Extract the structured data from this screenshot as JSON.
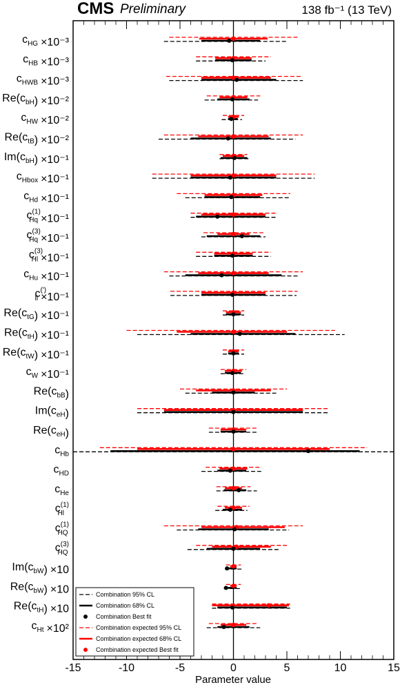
{
  "header": {
    "experiment": "CMS",
    "status": "Preliminary",
    "luminosity": "138 fb⁻¹ (13 TeV)"
  },
  "chart_data": {
    "type": "forest",
    "xlabel": "Parameter value",
    "xlim": [
      -15,
      15
    ],
    "xticks": [
      -15,
      -10,
      -5,
      0,
      5,
      10,
      15
    ],
    "parameters": [
      {
        "base": "c",
        "sub": "HG",
        "sup": "",
        "wrap": false,
        "scale": "×10⁻³",
        "obs68": [
          -3.0,
          2.5
        ],
        "obs95": [
          -6.5,
          5.0
        ],
        "obs_best": -0.4,
        "exp68": [
          -3.2,
          3.2
        ],
        "exp95": [
          -6.0,
          6.0
        ],
        "exp_best": 0.0
      },
      {
        "base": "c",
        "sub": "HB",
        "sup": "",
        "wrap": false,
        "scale": "×10⁻³",
        "obs68": [
          -1.7,
          1.7
        ],
        "obs95": [
          -3.5,
          3.0
        ],
        "obs_best": -0.1,
        "exp68": [
          -1.7,
          1.7
        ],
        "exp95": [
          -3.5,
          3.5
        ],
        "exp_best": 0.0
      },
      {
        "base": "c",
        "sub": "HWB",
        "sup": "",
        "wrap": false,
        "scale": "×10⁻³",
        "obs68": [
          -3.0,
          4.0
        ],
        "obs95": [
          -6.0,
          6.5
        ],
        "obs_best": 0.3,
        "exp68": [
          -3.0,
          3.5
        ],
        "exp95": [
          -6.3,
          6.3
        ],
        "exp_best": 0.0
      },
      {
        "base": "c",
        "sub": "bH",
        "sup": "",
        "wrap": true,
        "prefix": "Re",
        "scale": "×10⁻²",
        "obs68": [
          -1.5,
          1.5
        ],
        "obs95": [
          -2.7,
          2.3
        ],
        "obs_best": -0.1,
        "exp68": [
          -1.3,
          1.3
        ],
        "exp95": [
          -2.5,
          2.5
        ],
        "exp_best": 0.0
      },
      {
        "base": "c",
        "sub": "HW",
        "sup": "",
        "wrap": false,
        "scale": "×10⁻²",
        "obs68": [
          -0.5,
          0.4
        ],
        "obs95": [
          -1.1,
          0.8
        ],
        "obs_best": -0.2,
        "exp68": [
          -0.5,
          0.5
        ],
        "exp95": [
          -1.0,
          1.0
        ],
        "exp_best": 0.0
      },
      {
        "base": "c",
        "sub": "tB",
        "sup": "",
        "wrap": true,
        "prefix": "Re",
        "scale": "×10⁻²",
        "obs68": [
          -4.0,
          3.5
        ],
        "obs95": [
          -7.0,
          5.8
        ],
        "obs_best": -0.5,
        "exp68": [
          -3.3,
          3.3
        ],
        "exp95": [
          -6.5,
          6.5
        ],
        "exp_best": 0.0
      },
      {
        "base": "c",
        "sub": "bH",
        "sup": "",
        "wrap": true,
        "prefix": "Im",
        "scale": "×10⁻¹",
        "obs68": [
          -1.2,
          1.3
        ],
        "obs95": [
          -1.3,
          1.4
        ],
        "obs_best": 0.1,
        "exp68": [
          -1.0,
          1.0
        ],
        "exp95": [
          -1.3,
          1.3
        ],
        "exp_best": 0.0
      },
      {
        "base": "c",
        "sub": "Hbox",
        "sup": "",
        "wrap": false,
        "scale": "×10⁻¹",
        "obs68": [
          -4.0,
          4.0
        ],
        "obs95": [
          -7.6,
          7.6
        ],
        "obs_best": -0.3,
        "exp68": [
          -4.0,
          4.0
        ],
        "exp95": [
          -7.6,
          7.6
        ],
        "exp_best": 0.0
      },
      {
        "base": "c",
        "sub": "Hd",
        "sup": "",
        "wrap": false,
        "scale": "×10⁻¹",
        "obs68": [
          -2.7,
          2.5
        ],
        "obs95": [
          -4.5,
          5.2
        ],
        "obs_best": -0.2,
        "exp68": [
          -2.7,
          2.7
        ],
        "exp95": [
          -5.3,
          5.3
        ],
        "exp_best": 0.0
      },
      {
        "base": "c",
        "sub": "Hq",
        "sup": "(1)",
        "wrap": false,
        "scale": "×10⁻¹",
        "obs68": [
          -3.5,
          3.0
        ],
        "obs95": [
          -4.0,
          4.0
        ],
        "obs_best": -1.5,
        "exp68": [
          -3.0,
          3.0
        ],
        "exp95": [
          -4.0,
          4.0
        ],
        "exp_best": 0.0
      },
      {
        "base": "c",
        "sub": "Hq",
        "sup": "(3)",
        "wrap": false,
        "scale": "×10⁻¹",
        "obs68": [
          -2.5,
          2.5
        ],
        "obs95": [
          -3.0,
          3.0
        ],
        "obs_best": 0.8,
        "exp68": [
          -1.5,
          1.5
        ],
        "exp95": [
          -2.8,
          2.8
        ],
        "exp_best": 0.0
      },
      {
        "base": "c",
        "sub": "Hl",
        "sup": "(3)",
        "wrap": false,
        "scale": "×10⁻¹",
        "obs68": [
          -1.8,
          1.8
        ],
        "obs95": [
          -3.5,
          3.5
        ],
        "obs_best": -0.1,
        "exp68": [
          -1.8,
          1.8
        ],
        "exp95": [
          -3.5,
          3.5
        ],
        "exp_best": 0.0
      },
      {
        "base": "c",
        "sub": "Hu",
        "sup": "",
        "wrap": false,
        "scale": "×10⁻¹",
        "obs68": [
          -4.5,
          4.5
        ],
        "obs95": [
          -6.0,
          6.0
        ],
        "obs_best": -1.1,
        "exp68": [
          -3.3,
          3.3
        ],
        "exp95": [
          -6.5,
          6.5
        ],
        "exp_best": 0.0
      },
      {
        "base": "c",
        "sub": "ll",
        "sup": "(')",
        "wrap": false,
        "scale": "×10⁻¹",
        "obs68": [
          -3.0,
          3.0
        ],
        "obs95": [
          -5.9,
          5.9
        ],
        "obs_best": -0.1,
        "exp68": [
          -3.0,
          3.0
        ],
        "exp95": [
          -5.9,
          6.0
        ],
        "exp_best": 0.0
      },
      {
        "base": "c",
        "sub": "tG",
        "sup": "",
        "wrap": true,
        "prefix": "Re",
        "scale": "×10⁻¹",
        "obs68": [
          -0.7,
          0.7
        ],
        "obs95": [
          -1.0,
          1.0
        ],
        "obs_best": 0.0,
        "exp68": [
          -0.7,
          0.7
        ],
        "exp95": [
          -1.0,
          1.0
        ],
        "exp_best": 0.0
      },
      {
        "base": "c",
        "sub": "tH",
        "sup": "",
        "wrap": true,
        "prefix": "Re",
        "scale": "×10⁻¹",
        "obs68": [
          -4.0,
          5.8
        ],
        "obs95": [
          -9.0,
          10.4
        ],
        "obs_best": 0.6,
        "exp68": [
          -5.3,
          5.0
        ],
        "exp95": [
          -10.0,
          9.5
        ],
        "exp_best": 0.0
      },
      {
        "base": "c",
        "sub": "tW",
        "sup": "",
        "wrap": true,
        "prefix": "Re",
        "scale": "×10⁻¹",
        "obs68": [
          -0.5,
          0.5
        ],
        "obs95": [
          -1.0,
          1.0
        ],
        "obs_best": 0.0,
        "exp68": [
          -0.5,
          0.5
        ],
        "exp95": [
          -1.0,
          1.0
        ],
        "exp_best": 0.0
      },
      {
        "base": "c",
        "sub": "W",
        "sup": "",
        "wrap": false,
        "scale": "×10⁻¹",
        "obs68": [
          -0.8,
          0.7
        ],
        "obs95": [
          -1.2,
          1.0
        ],
        "obs_best": -0.1,
        "exp68": [
          -0.8,
          0.8
        ],
        "exp95": [
          -1.2,
          1.2
        ],
        "exp_best": 0.0
      },
      {
        "base": "c",
        "sub": "bB",
        "sup": "",
        "wrap": true,
        "prefix": "Re",
        "scale": "",
        "obs68": [
          -2.0,
          2.0
        ],
        "obs95": [
          -4.5,
          4.0
        ],
        "obs_best": 0.0,
        "exp68": [
          -3.5,
          3.5
        ],
        "exp95": [
          -5.0,
          5.0
        ],
        "exp_best": 0.0
      },
      {
        "base": "c",
        "sub": "eH",
        "sup": "",
        "wrap": true,
        "prefix": "Im",
        "scale": "",
        "obs68": [
          -6.5,
          6.5
        ],
        "obs95": [
          -9.0,
          9.0
        ],
        "obs_best": 0.0,
        "exp68": [
          -6.5,
          6.5
        ],
        "exp95": [
          -9.0,
          9.0
        ],
        "exp_best": 0.0
      },
      {
        "base": "c",
        "sub": "eH",
        "sup": "",
        "wrap": true,
        "prefix": "Re",
        "scale": "",
        "obs68": [
          -1.2,
          1.2
        ],
        "obs95": [
          -2.3,
          2.3
        ],
        "obs_best": 0.0,
        "exp68": [
          -1.2,
          1.2
        ],
        "exp95": [
          -2.3,
          2.3
        ],
        "exp_best": 0.0
      },
      {
        "base": "c",
        "sub": "Hb",
        "sup": "",
        "wrap": false,
        "scale": "",
        "obs68": [
          -11.5,
          11.8
        ],
        "obs95": [
          -15.0,
          15.0
        ],
        "obs_best": 7.0,
        "exp68": [
          -9.0,
          9.0
        ],
        "exp95": [
          -12.5,
          12.5
        ],
        "exp_best": 0.0
      },
      {
        "base": "c",
        "sub": "HD",
        "sup": "",
        "wrap": false,
        "scale": "",
        "obs68": [
          -1.5,
          1.2
        ],
        "obs95": [
          -3.0,
          2.6
        ],
        "obs_best": -0.3,
        "exp68": [
          -1.3,
          1.3
        ],
        "exp95": [
          -2.6,
          2.6
        ],
        "exp_best": 0.0
      },
      {
        "base": "c",
        "sub": "He",
        "sup": "",
        "wrap": false,
        "scale": "",
        "obs68": [
          -0.9,
          1.2
        ],
        "obs95": [
          -1.6,
          2.2
        ],
        "obs_best": 0.5,
        "exp68": [
          -0.8,
          0.8
        ],
        "exp95": [
          -1.6,
          1.6
        ],
        "exp_best": 0.0
      },
      {
        "base": "c",
        "sub": "Hl",
        "sup": "(1)",
        "wrap": false,
        "scale": "",
        "obs68": [
          -1.0,
          0.8
        ],
        "obs95": [
          -1.7,
          1.3
        ],
        "obs_best": -0.3,
        "exp68": [
          -0.8,
          0.8
        ],
        "exp95": [
          -1.5,
          1.5
        ],
        "exp_best": 0.0
      },
      {
        "base": "c",
        "sub": "HQ",
        "sup": "(1)",
        "wrap": false,
        "scale": "",
        "obs68": [
          -3.3,
          3.3
        ],
        "obs95": [
          -5.3,
          5.2
        ],
        "obs_best": 0.1,
        "exp68": [
          -3.0,
          4.8
        ],
        "exp95": [
          -6.5,
          6.5
        ],
        "exp_best": 0.3
      },
      {
        "base": "c",
        "sub": "HQ",
        "sup": "(3)",
        "wrap": false,
        "scale": "",
        "obs68": [
          -2.5,
          2.5
        ],
        "obs95": [
          -4.3,
          4.3
        ],
        "obs_best": 0.0,
        "exp68": [
          -2.0,
          3.5
        ],
        "exp95": [
          -3.5,
          5.0
        ],
        "exp_best": 0.3
      },
      {
        "base": "c",
        "sub": "bW",
        "sup": "",
        "wrap": true,
        "prefix": "Im",
        "scale": "×10",
        "obs68": [
          -0.5,
          0.3
        ],
        "obs95": [
          -0.8,
          0.8
        ],
        "obs_best": -0.6,
        "exp68": [
          -0.3,
          0.3
        ],
        "exp95": [
          -0.7,
          0.7
        ],
        "exp_best": 0.0
      },
      {
        "base": "c",
        "sub": "bW",
        "sup": "",
        "wrap": true,
        "prefix": "Re",
        "scale": "×10",
        "obs68": [
          -0.7,
          0.3
        ],
        "obs95": [
          -0.9,
          0.6
        ],
        "obs_best": -0.7,
        "exp68": [
          -0.3,
          0.3
        ],
        "exp95": [
          -0.7,
          0.7
        ],
        "exp_best": 0.0
      },
      {
        "base": "c",
        "sub": "tH",
        "sup": "",
        "wrap": true,
        "prefix": "Re",
        "scale": "×10",
        "obs68": [
          -1.5,
          5.0
        ],
        "obs95": [
          -2.0,
          5.3
        ],
        "obs_best": -0.1,
        "exp68": [
          -2.0,
          5.2
        ],
        "exp95": [
          -2.0,
          5.3
        ],
        "exp_best": 3.3
      },
      {
        "base": "c",
        "sub": "Ht",
        "sup": "",
        "wrap": false,
        "scale": "×10²",
        "obs68": [
          -1.5,
          1.5
        ],
        "obs95": [
          -2.5,
          2.5
        ],
        "obs_best": -0.9,
        "exp68": [
          -1.2,
          1.2
        ],
        "exp95": [
          -2.3,
          2.3
        ],
        "exp_best": 0.0
      }
    ],
    "legend": {
      "placement": "bottom-left",
      "entries": [
        "Combination 95% CL",
        "Combination 68% CL",
        "Combination Best fit",
        "Combination expected 95% CL",
        "Combination expected 68% CL",
        "Combination expected Best fit"
      ]
    },
    "colors": {
      "observed": "#000000",
      "expected": "#ff0000"
    }
  }
}
